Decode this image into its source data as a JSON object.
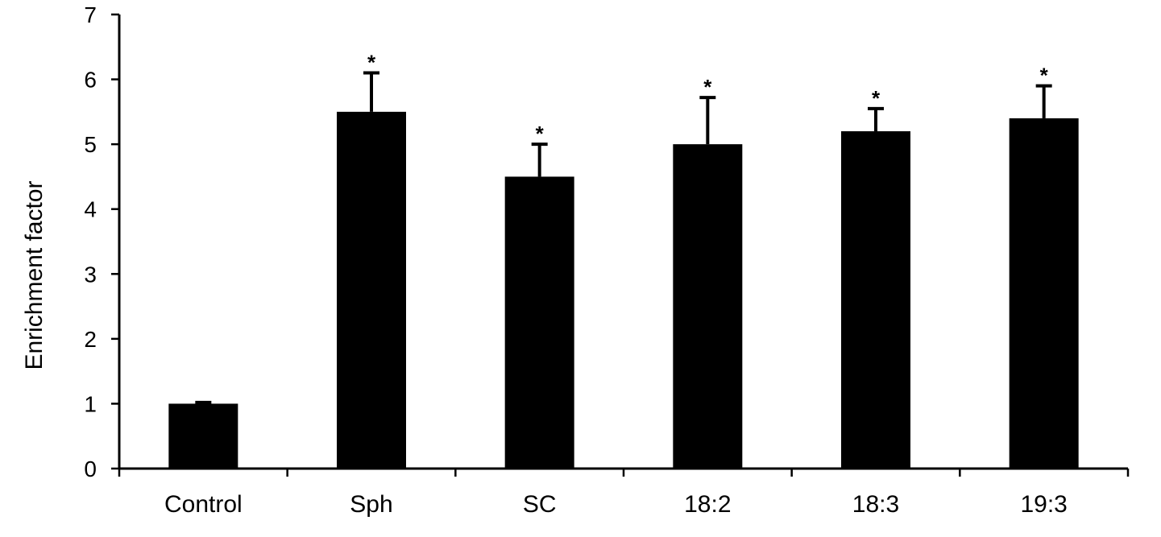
{
  "chart_data": {
    "type": "bar",
    "title": "",
    "xlabel": "",
    "ylabel": "Enrichment factor",
    "ylim": [
      0,
      7
    ],
    "yticks": [
      0,
      1,
      2,
      3,
      4,
      5,
      6,
      7
    ],
    "categories": [
      "Control",
      "Sph",
      "SC",
      "18:2",
      "18:3",
      "19:3"
    ],
    "values": [
      1.0,
      5.5,
      4.5,
      5.0,
      5.2,
      5.4
    ],
    "error_upper": [
      0.02,
      0.6,
      0.5,
      0.72,
      0.35,
      0.5
    ],
    "significance": [
      "",
      "*",
      "*",
      "*",
      "*",
      "*"
    ],
    "bar_color": "#000000",
    "grid": false,
    "legend": "none"
  }
}
